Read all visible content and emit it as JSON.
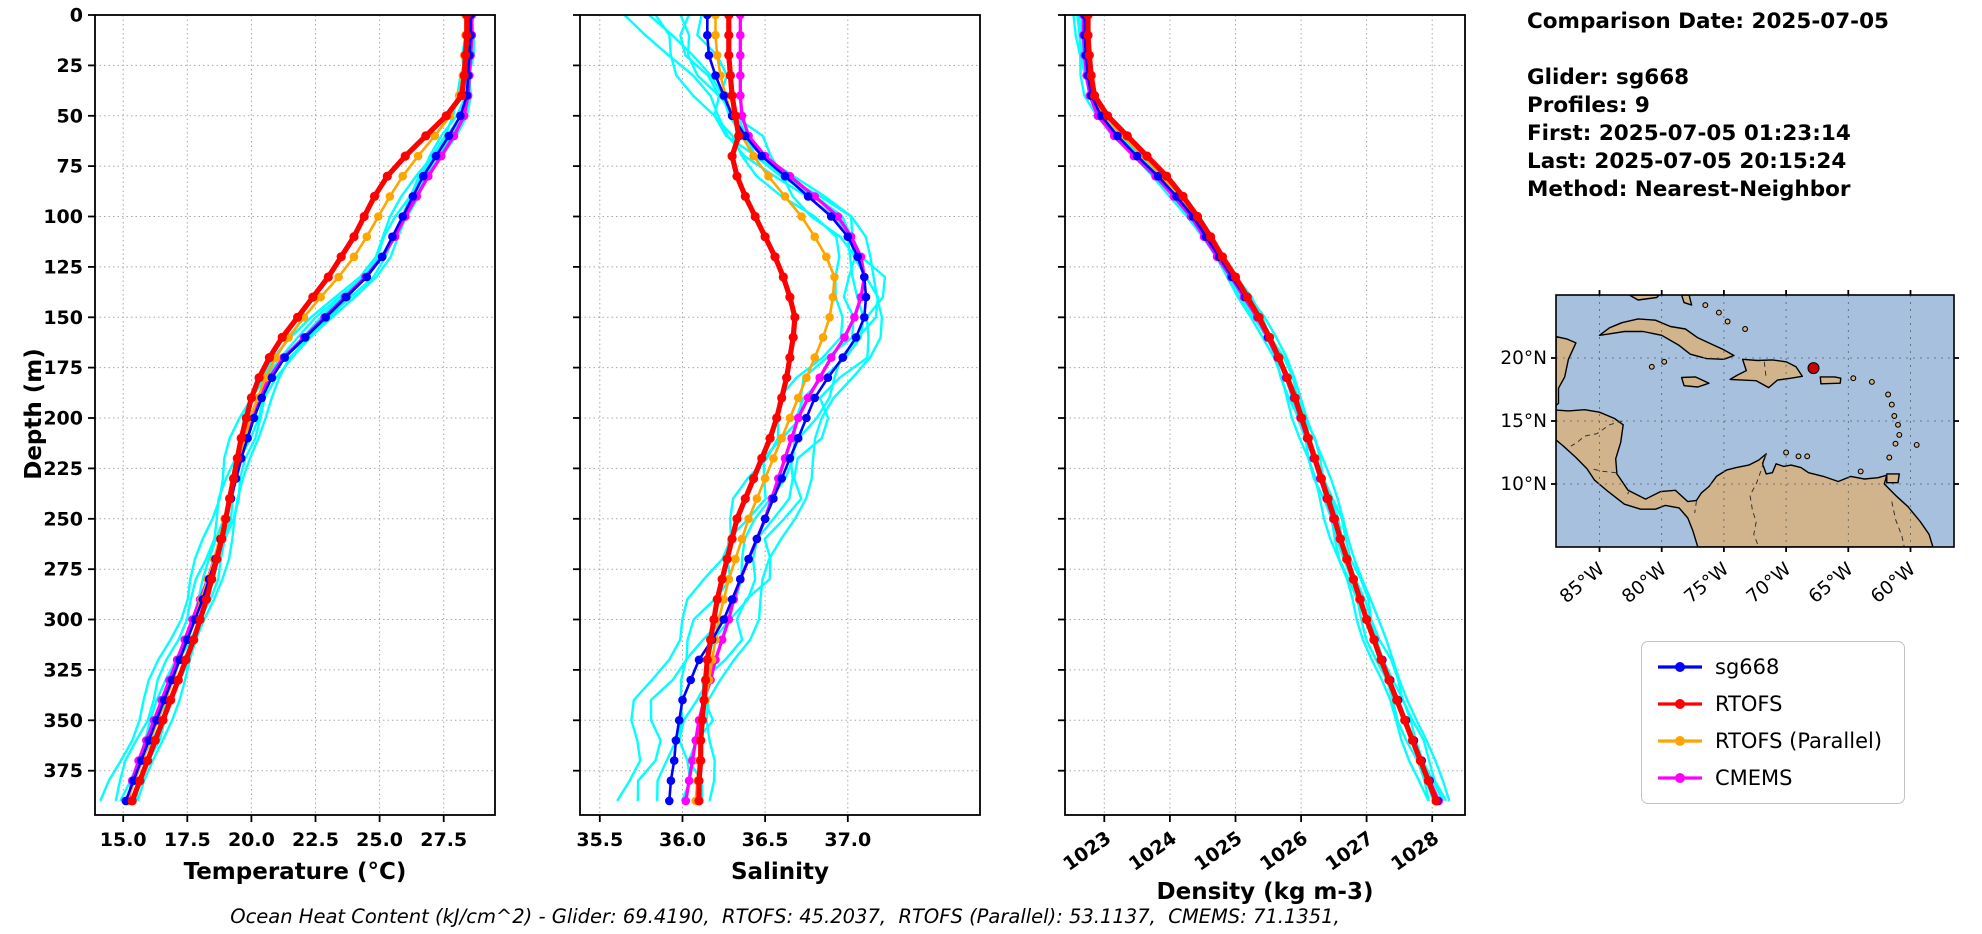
{
  "ylabel": "Depth (m)",
  "info_panel": {
    "comparison_date": "Comparison Date: 2025-07-05",
    "glider": "Glider: sg668",
    "profiles": "Profiles: 9",
    "first": "First: 2025-07-05 01:23:14",
    "last": "Last: 2025-07-05 20:15:24",
    "method": "Method: Nearest-Neighbor"
  },
  "legend": {
    "entries": [
      {
        "label": "sg668",
        "color": "#0000ff"
      },
      {
        "label": "RTOFS",
        "color": "#ff0000"
      },
      {
        "label": "RTOFS (Parallel)",
        "color": "#ffa500"
      },
      {
        "label": "CMEMS",
        "color": "#ff00ff"
      }
    ]
  },
  "caption": "Ocean Heat Content (kJ/cm^2) - Glider: 69.4190,  RTOFS: 45.2037,  RTOFS (Parallel): 53.1137,  CMEMS: 71.1351,",
  "chart_data": [
    {
      "id": "temperature",
      "type": "line",
      "xlabel": "Temperature (°C)",
      "ylabel": "Depth (m)",
      "xlim": [
        13.9,
        29.5
      ],
      "ylim": [
        0,
        397
      ],
      "y_inverted": true,
      "xticks": [
        15.0,
        17.5,
        20.0,
        22.5,
        25.0,
        27.5
      ],
      "xtick_labels": [
        "15.0",
        "17.5",
        "20.0",
        "22.5",
        "25.0",
        "27.5"
      ],
      "yticks": [
        0,
        25,
        50,
        75,
        100,
        125,
        150,
        175,
        200,
        225,
        250,
        275,
        300,
        325,
        350,
        375
      ],
      "depths": [
        0,
        10,
        20,
        30,
        40,
        50,
        60,
        70,
        80,
        90,
        100,
        110,
        120,
        130,
        140,
        150,
        160,
        170,
        180,
        190,
        200,
        210,
        220,
        230,
        240,
        250,
        260,
        270,
        280,
        290,
        300,
        310,
        320,
        330,
        340,
        350,
        360,
        370,
        380,
        390
      ],
      "series": [
        {
          "name": "sg668",
          "color": "#0000ff",
          "values": [
            28.55,
            28.55,
            28.5,
            28.45,
            28.4,
            28.15,
            27.7,
            27.2,
            26.7,
            26.3,
            25.9,
            25.5,
            25.1,
            24.5,
            23.7,
            22.9,
            22.1,
            21.3,
            20.8,
            20.4,
            20.1,
            19.85,
            19.6,
            19.4,
            19.2,
            19.0,
            18.8,
            18.6,
            18.35,
            18.1,
            17.8,
            17.5,
            17.2,
            16.9,
            16.6,
            16.3,
            16.0,
            15.7,
            15.4,
            15.1
          ]
        },
        {
          "name": "RTOFS",
          "color": "#ff0000",
          "values": [
            28.4,
            28.4,
            28.35,
            28.3,
            28.2,
            27.6,
            26.8,
            26.0,
            25.3,
            24.8,
            24.4,
            24.0,
            23.5,
            23.0,
            22.4,
            21.8,
            21.2,
            20.7,
            20.3,
            20.0,
            19.8,
            19.6,
            19.45,
            19.3,
            19.15,
            19.0,
            18.85,
            18.65,
            18.45,
            18.25,
            18.0,
            17.75,
            17.45,
            17.15,
            16.85,
            16.55,
            16.25,
            15.95,
            15.65,
            15.35
          ]
        },
        {
          "name": "RTOFS (Parallel)",
          "color": "#ffa500",
          "values": [
            28.35,
            28.35,
            28.3,
            28.25,
            28.1,
            27.75,
            27.15,
            26.5,
            25.9,
            25.4,
            24.95,
            24.5,
            24.0,
            23.4,
            22.7,
            22.05,
            21.45,
            20.95,
            20.55,
            20.25,
            19.95,
            19.75,
            19.55,
            19.35,
            19.15,
            18.95,
            18.75,
            18.55,
            18.3,
            18.05,
            17.8,
            17.5,
            17.2,
            16.95,
            16.65,
            16.35,
            16.05,
            15.75,
            15.45,
            15.15
          ]
        },
        {
          "name": "CMEMS",
          "color": "#ff00ff",
          "values": [
            28.6,
            28.6,
            28.55,
            28.5,
            28.45,
            28.3,
            27.9,
            27.4,
            26.9,
            26.45,
            26.0,
            25.6,
            25.1,
            24.45,
            23.65,
            22.85,
            22.05,
            21.25,
            20.7,
            20.3,
            20.0,
            19.8,
            19.6,
            19.4,
            19.2,
            19.0,
            18.8,
            18.55,
            18.3,
            18.0,
            17.7,
            17.4,
            17.1,
            16.8,
            16.5,
            16.2,
            15.9,
            15.6,
            15.35,
            15.2
          ]
        }
      ],
      "raw_profiles": {
        "name": "glider raw profiles",
        "color": "#00ffff",
        "profiles": [
          {
            "dx": -0.5,
            "surf": 0.1,
            "amp": 0.16,
            "period": 58,
            "phase": 0.6
          },
          {
            "dx": -0.3,
            "surf": -0.05,
            "amp": 0.13,
            "period": 44,
            "phase": 2.1
          },
          {
            "dx": -0.12,
            "surf": 0.05,
            "amp": 0.11,
            "period": 66,
            "phase": 3.8
          },
          {
            "dx": 0.05,
            "surf": -0.1,
            "amp": 0.14,
            "period": 50,
            "phase": 1.4
          },
          {
            "dx": 0.2,
            "surf": 0.0,
            "amp": 0.1,
            "period": 38,
            "phase": 5.1
          },
          {
            "dx": 0.32,
            "surf": -0.05,
            "amp": 0.12,
            "period": 72,
            "phase": 2.9
          }
        ]
      }
    },
    {
      "id": "salinity",
      "type": "line",
      "xlabel": "Salinity",
      "ylabel": "Depth (m)",
      "xlim": [
        35.38,
        37.8
      ],
      "ylim": [
        0,
        397
      ],
      "y_inverted": true,
      "xticks": [
        35.5,
        36.0,
        36.5,
        37.0
      ],
      "xtick_labels": [
        "35.5",
        "36.0",
        "36.5",
        "37.0"
      ],
      "yticks": [
        0,
        25,
        50,
        75,
        100,
        125,
        150,
        175,
        200,
        225,
        250,
        275,
        300,
        325,
        350,
        375
      ],
      "depths": [
        0,
        10,
        20,
        30,
        40,
        50,
        60,
        70,
        80,
        90,
        100,
        110,
        120,
        130,
        140,
        150,
        160,
        170,
        180,
        190,
        200,
        210,
        220,
        230,
        240,
        250,
        260,
        270,
        280,
        290,
        300,
        310,
        320,
        330,
        340,
        350,
        360,
        370,
        380,
        390
      ],
      "series": [
        {
          "name": "sg668",
          "color": "#0000ff",
          "values": [
            36.15,
            36.15,
            36.16,
            36.2,
            36.25,
            36.3,
            36.38,
            36.48,
            36.62,
            36.76,
            36.9,
            37.0,
            37.06,
            37.1,
            37.11,
            37.1,
            37.05,
            36.97,
            36.88,
            36.8,
            36.75,
            36.7,
            36.65,
            36.6,
            36.55,
            36.5,
            36.45,
            36.4,
            36.35,
            36.3,
            36.25,
            36.18,
            36.1,
            36.05,
            36.0,
            35.98,
            35.96,
            35.95,
            35.93,
            35.92
          ]
        },
        {
          "name": "RTOFS",
          "color": "#ff0000",
          "values": [
            36.28,
            36.28,
            36.28,
            36.29,
            36.3,
            36.32,
            36.34,
            36.3,
            36.33,
            36.38,
            36.44,
            36.5,
            36.56,
            36.61,
            36.65,
            36.68,
            36.67,
            36.65,
            36.63,
            36.6,
            36.57,
            36.53,
            36.48,
            36.43,
            36.38,
            36.33,
            36.3,
            36.27,
            36.24,
            36.21,
            36.19,
            36.17,
            36.15,
            36.14,
            36.13,
            36.12,
            36.11,
            36.11,
            36.1,
            36.1
          ]
        },
        {
          "name": "RTOFS (Parallel)",
          "color": "#ffa500",
          "values": [
            36.2,
            36.2,
            36.21,
            36.23,
            36.26,
            36.3,
            36.36,
            36.43,
            36.52,
            36.62,
            36.72,
            36.8,
            36.87,
            36.92,
            36.91,
            36.89,
            36.85,
            36.8,
            36.75,
            36.7,
            36.65,
            36.6,
            36.55,
            36.5,
            36.45,
            36.4,
            36.36,
            36.32,
            36.28,
            36.25,
            36.22,
            36.2,
            36.18,
            36.16,
            36.14,
            36.12,
            36.11,
            36.1,
            36.09,
            36.08
          ]
        },
        {
          "name": "CMEMS",
          "color": "#ff00ff",
          "values": [
            36.35,
            36.35,
            36.35,
            36.35,
            36.35,
            36.36,
            36.4,
            36.5,
            36.65,
            36.8,
            36.94,
            37.02,
            37.08,
            37.1,
            37.08,
            37.04,
            36.98,
            36.9,
            36.83,
            36.76,
            36.7,
            36.66,
            36.62,
            36.58,
            36.54,
            36.5,
            36.45,
            36.4,
            36.35,
            36.31,
            36.28,
            36.24,
            36.2,
            36.17,
            36.13,
            36.1,
            36.08,
            36.06,
            36.04,
            36.02
          ]
        }
      ],
      "raw_profiles": {
        "name": "glider raw profiles",
        "color": "#00ffff",
        "profiles": [
          {
            "dx": -0.16,
            "surf": -0.3,
            "amp": 0.055,
            "period": 52,
            "phase": 0.9
          },
          {
            "dx": -0.09,
            "surf": -0.12,
            "amp": 0.06,
            "period": 41,
            "phase": 2.4
          },
          {
            "dx": -0.02,
            "surf": -0.45,
            "amp": 0.05,
            "period": 63,
            "phase": 4.2
          },
          {
            "dx": 0.04,
            "surf": -0.22,
            "amp": 0.05,
            "period": 47,
            "phase": 1.1
          },
          {
            "dx": 0.09,
            "surf": -0.05,
            "amp": 0.065,
            "period": 36,
            "phase": 3.4
          },
          {
            "dx": 0.13,
            "surf": -0.36,
            "amp": 0.045,
            "period": 70,
            "phase": 5.3
          }
        ]
      }
    },
    {
      "id": "density",
      "type": "line",
      "xlabel": "Density (kg m-3)",
      "ylabel": "Depth (m)",
      "xlim": [
        1022.4,
        1028.5
      ],
      "ylim": [
        0,
        397
      ],
      "y_inverted": true,
      "xticks": [
        1023,
        1024,
        1025,
        1026,
        1027,
        1028
      ],
      "xtick_labels": [
        "1023",
        "1024",
        "1025",
        "1026",
        "1027",
        "1028"
      ],
      "yticks": [
        0,
        25,
        50,
        75,
        100,
        125,
        150,
        175,
        200,
        225,
        250,
        275,
        300,
        325,
        350,
        375
      ],
      "depths": [
        0,
        10,
        20,
        30,
        40,
        50,
        60,
        70,
        80,
        90,
        100,
        110,
        120,
        130,
        140,
        150,
        160,
        170,
        180,
        190,
        200,
        210,
        220,
        230,
        240,
        250,
        260,
        270,
        280,
        290,
        300,
        310,
        320,
        330,
        340,
        350,
        360,
        370,
        380,
        390
      ],
      "series": [
        {
          "name": "sg668",
          "color": "#0000ff",
          "values": [
            1022.7,
            1022.7,
            1022.72,
            1022.75,
            1022.8,
            1022.95,
            1023.2,
            1023.5,
            1023.82,
            1024.1,
            1024.35,
            1024.55,
            1024.75,
            1024.95,
            1025.15,
            1025.35,
            1025.5,
            1025.65,
            1025.78,
            1025.9,
            1026.0,
            1026.1,
            1026.2,
            1026.3,
            1026.4,
            1026.5,
            1026.6,
            1026.7,
            1026.8,
            1026.9,
            1027.0,
            1027.12,
            1027.24,
            1027.36,
            1027.48,
            1027.6,
            1027.72,
            1027.84,
            1027.96,
            1028.08
          ]
        },
        {
          "name": "RTOFS",
          "color": "#ff0000",
          "values": [
            1022.75,
            1022.75,
            1022.77,
            1022.8,
            1022.85,
            1023.05,
            1023.35,
            1023.65,
            1023.95,
            1024.2,
            1024.42,
            1024.62,
            1024.8,
            1025.0,
            1025.18,
            1025.36,
            1025.52,
            1025.66,
            1025.79,
            1025.91,
            1026.01,
            1026.11,
            1026.21,
            1026.31,
            1026.41,
            1026.51,
            1026.6,
            1026.7,
            1026.8,
            1026.9,
            1027.0,
            1027.11,
            1027.22,
            1027.34,
            1027.46,
            1027.58,
            1027.7,
            1027.82,
            1027.94,
            1028.06
          ]
        },
        {
          "name": "RTOFS (Parallel)",
          "color": "#ffa500",
          "values": [
            1022.72,
            1022.72,
            1022.74,
            1022.78,
            1022.83,
            1023.0,
            1023.28,
            1023.58,
            1023.88,
            1024.15,
            1024.38,
            1024.58,
            1024.78,
            1024.98,
            1025.16,
            1025.35,
            1025.51,
            1025.65,
            1025.78,
            1025.9,
            1026.0,
            1026.1,
            1026.2,
            1026.3,
            1026.4,
            1026.5,
            1026.6,
            1026.69,
            1026.79,
            1026.89,
            1026.99,
            1027.11,
            1027.23,
            1027.35,
            1027.47,
            1027.59,
            1027.71,
            1027.83,
            1027.95,
            1028.07
          ]
        },
        {
          "name": "CMEMS",
          "color": "#ff00ff",
          "values": [
            1022.68,
            1022.68,
            1022.7,
            1022.73,
            1022.78,
            1022.9,
            1023.15,
            1023.45,
            1023.78,
            1024.06,
            1024.32,
            1024.52,
            1024.72,
            1024.93,
            1025.13,
            1025.33,
            1025.49,
            1025.64,
            1025.77,
            1025.89,
            1025.99,
            1026.09,
            1026.19,
            1026.29,
            1026.39,
            1026.49,
            1026.59,
            1026.69,
            1026.79,
            1026.89,
            1026.99,
            1027.11,
            1027.23,
            1027.35,
            1027.47,
            1027.59,
            1027.71,
            1027.83,
            1027.96,
            1028.1
          ]
        }
      ],
      "raw_profiles": {
        "name": "glider raw profiles",
        "color": "#00ffff",
        "profiles": [
          {
            "dx": -0.1,
            "surf": -0.1,
            "amp": 0.035,
            "period": 55,
            "phase": 0.7
          },
          {
            "dx": -0.06,
            "surf": -0.04,
            "amp": 0.04,
            "period": 42,
            "phase": 2.2
          },
          {
            "dx": -0.02,
            "surf": -0.14,
            "amp": 0.03,
            "period": 64,
            "phase": 4.0
          },
          {
            "dx": 0.03,
            "surf": -0.07,
            "amp": 0.035,
            "period": 49,
            "phase": 1.5
          },
          {
            "dx": 0.07,
            "surf": -0.02,
            "amp": 0.04,
            "period": 37,
            "phase": 3.2
          },
          {
            "dx": 0.11,
            "surf": -0.1,
            "amp": 0.03,
            "period": 68,
            "phase": 5.0
          }
        ]
      }
    },
    {
      "id": "map",
      "type": "map",
      "lon_range": [
        -88.5,
        -56.5
      ],
      "lat_range": [
        5,
        25
      ],
      "lon_ticks": [
        -85,
        -80,
        -75,
        -70,
        -65,
        -60
      ],
      "lon_tick_labels": [
        "85°W",
        "80°W",
        "75°W",
        "70°W",
        "65°W",
        "60°W"
      ],
      "lat_ticks": [
        10,
        15,
        20
      ],
      "lat_tick_labels": [
        "10°N",
        "15°N",
        "20°N"
      ],
      "marker": {
        "lon": -67.8,
        "lat": 19.2,
        "color": "#cc0000"
      },
      "ocean_color": "#a6c0de",
      "land_color": "#d2b48c"
    }
  ]
}
